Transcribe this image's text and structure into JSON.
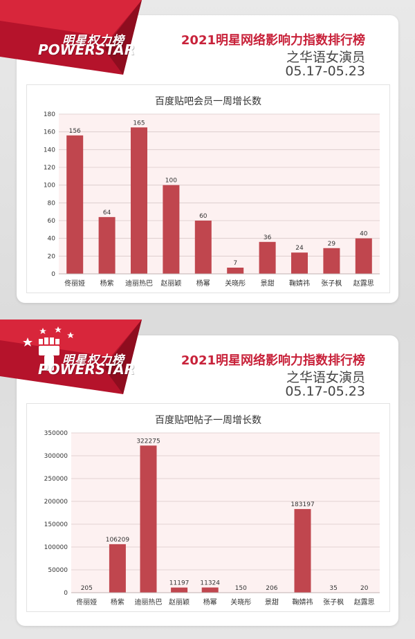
{
  "colors": {
    "brand_red": "#c8223a",
    "bar": "#c0464e",
    "plot_bg": "#fdf1f1",
    "grid": "#d8c8c8"
  },
  "sections": [
    {
      "brand": {
        "cn": "明星权力榜",
        "en": "POWERSTAR"
      },
      "heading": {
        "title": "2021明星网络影响力指数排行榜",
        "subtitle": "之华语女演员",
        "dates": "05.17-05.23"
      }
    },
    {
      "brand": {
        "cn": "明星权力榜",
        "en": "POWERSTAR"
      },
      "heading": {
        "title": "2021明星网络影响力指数排行榜",
        "subtitle": "之华语女演员",
        "dates": "05.17-05.23"
      }
    }
  ],
  "chart_data": [
    {
      "type": "bar",
      "title": "百度贴吧会员一周增长数",
      "categories": [
        "佟丽娅",
        "杨紫",
        "迪丽热巴",
        "赵丽颖",
        "杨幂",
        "关晓彤",
        "景甜",
        "鞠婧祎",
        "张子枫",
        "赵露思"
      ],
      "values": [
        156,
        64,
        165,
        100,
        60,
        7,
        36,
        24,
        29,
        40
      ],
      "ylim": [
        0,
        180
      ],
      "yticks": [
        0,
        20,
        40,
        60,
        80,
        100,
        120,
        140,
        160,
        180
      ],
      "grid": true,
      "xlabel": "",
      "ylabel": ""
    },
    {
      "type": "bar",
      "title": "百度贴吧帖子一周增长数",
      "categories": [
        "佟丽娅",
        "杨紫",
        "迪丽热巴",
        "赵丽颖",
        "杨幂",
        "关晓彤",
        "景甜",
        "鞠婧祎",
        "张子枫",
        "赵露思"
      ],
      "values": [
        205,
        106209,
        322275,
        11197,
        11324,
        150,
        206,
        183197,
        35,
        20
      ],
      "ylim": [
        0,
        350000
      ],
      "yticks": [
        0,
        50000,
        100000,
        150000,
        200000,
        250000,
        300000,
        350000
      ],
      "grid": true,
      "xlabel": "",
      "ylabel": ""
    }
  ]
}
